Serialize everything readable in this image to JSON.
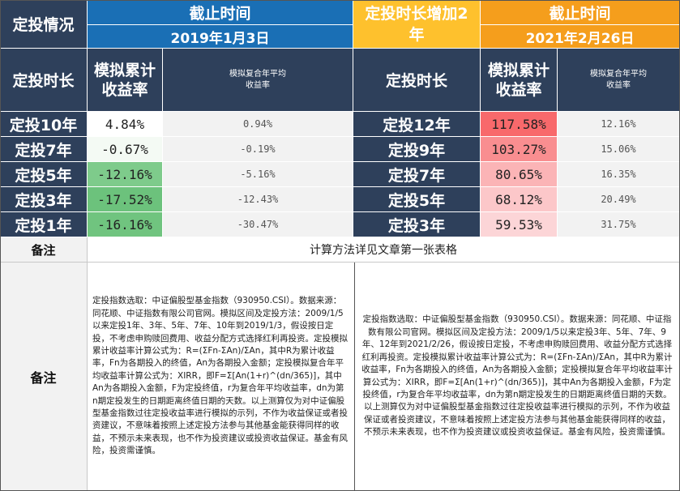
{
  "header": {
    "section_title": "定投情况",
    "left_deadline_label": "截止时间",
    "left_deadline_date": "2019年1月3日",
    "extension_label": "定投时长增加2年",
    "right_deadline_label": "截止时间",
    "right_deadline_date": "2021年2月26日"
  },
  "columns": {
    "duration": "定投时长",
    "cumulative": "模拟累计收益率",
    "annualized": "模拟复合年平均收益率"
  },
  "colors": {
    "navy": "#2e405b",
    "blue": "#1a6fb5",
    "gold": "#fec12d",
    "orange": "#f59e1c"
  },
  "left_table": [
    {
      "duration": "定投10年",
      "cumulative": "4.84%",
      "annualized": "0.94%",
      "bg": "#ffffff"
    },
    {
      "duration": "定投7年",
      "cumulative": "-0.67%",
      "annualized": "-0.19%",
      "bg": "#f4faf4"
    },
    {
      "duration": "定投5年",
      "cumulative": "-12.16%",
      "annualized": "-5.16%",
      "bg": "#7ecb8b"
    },
    {
      "duration": "定投3年",
      "cumulative": "-17.52%",
      "annualized": "-12.43%",
      "bg": "#6cc27c"
    },
    {
      "duration": "定投1年",
      "cumulative": "-16.16%",
      "annualized": "-30.47%",
      "bg": "#70c47f"
    }
  ],
  "right_table": [
    {
      "duration": "定投12年",
      "cumulative": "117.58%",
      "annualized": "12.16%",
      "bg": "#f8696b"
    },
    {
      "duration": "定投9年",
      "cumulative": "103.27%",
      "annualized": "15.06%",
      "bg": "#f98e90"
    },
    {
      "duration": "定投7年",
      "cumulative": "80.65%",
      "annualized": "16.35%",
      "bg": "#fbb4b6"
    },
    {
      "duration": "定投5年",
      "cumulative": "68.12%",
      "annualized": "20.49%",
      "bg": "#fcc7c9"
    },
    {
      "duration": "定投3年",
      "cumulative": "59.53%",
      "annualized": "31.75%",
      "bg": "#fcd5d7"
    }
  ],
  "notes": {
    "label_1": "备注",
    "text_1": "计算方法详见文章第一张表格",
    "label_2": "备注",
    "left_note": "定投指数选取：中证偏股型基金指数（930950.CSI）。数据来源：同花顺、中证指数有限公司官网。模拟区间及定投方法：2009/1/5以来定投1年、3年、5年、7年、10年到2019/1/3，假设按日定投，不考虑申购赎回费用、收益分配方式选择红利再投资。定投模拟累计收益率计算公式为：R=(ΣFn-ΣAn)/ΣAn，其中R为累计收益率，Fn为各期投入的终值，An为各期投入金额；定投模拟复合年平均收益率计算公式为：XIRR，即F=Σ[An(1+r)^(dn/365)]，其中An为各期投入金额，F为定投终值，r为复合年平均收益率，dn为第n期定投发生的日期距离终值日期的天数。以上测算仅为对中证偏股型基金指数过往定投收益率进行模拟的示列，不作为收益保证或者投资建议，不意味着按照上述定投方法参与其他基金能获得同样的收益，不预示未来表现，也不作为投资建议或投资收益保证。基金有风险，投资需谨慎。",
    "right_note": "定投指数选取：中证偏股型基金指数（930950.CSI）。数据来源：同花顺、中证指数有限公司官网。模拟区间及定投方法：2009/1/5以来定投3年、5年、7年、9年、12年到2021/2/26，假设按日定投，不考虑申购赎回费用、收益分配方式选择红利再投资。定投模拟累计收益率计算公式为：R=(ΣFn-ΣAn)/ΣAn，其中R为累计收益率，Fn为各期投入的终值，An为各期投入金额；定投模拟复合年平均收益率计算公式为：XIRR，即F=Σ[An(1+r)^(dn/365)]，其中An为各期投入金额，F为定投终值，r为复合年平均收益率，dn为第n期定投发生的日期距离终值日期的天数。以上测算仅为对中证偏股型基金指数过往定投收益率进行模拟的示列，不作为收益保证或者投资建议，不意味着按照上述定投方法参与其他基金能获得同样的收益，不预示未来表现，也不作为投资建议或投资收益保证。基金有风险，投资需谨慎。"
  }
}
